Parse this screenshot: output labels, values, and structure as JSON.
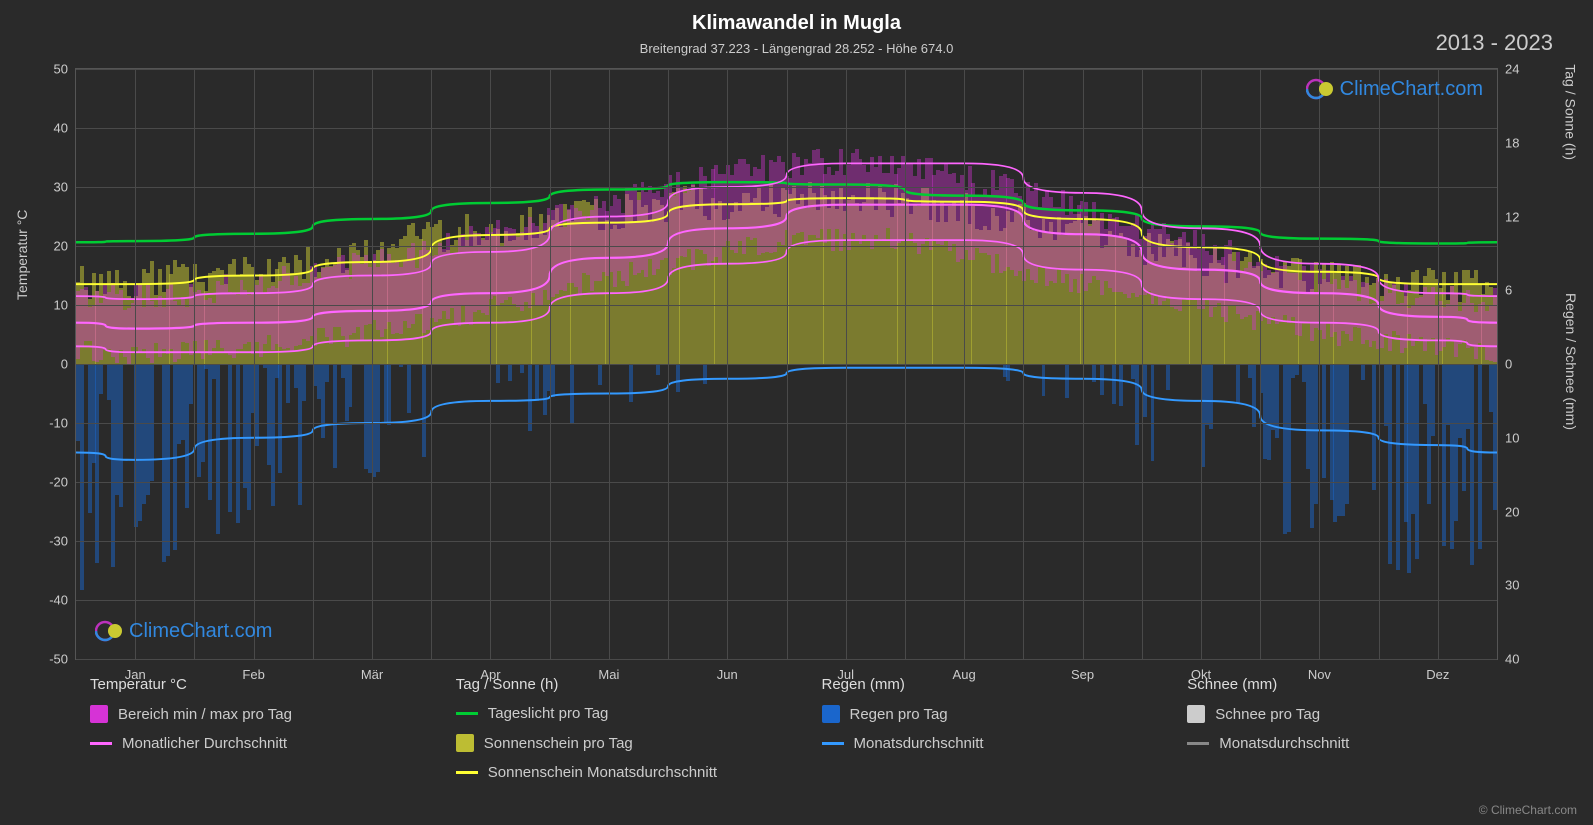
{
  "title": "Klimawandel in Mugla",
  "subtitle": "Breitengrad 37.223 - Längengrad 28.252 - Höhe 674.0",
  "year_range": "2013 - 2023",
  "watermark_text": "ClimeChart.com",
  "copyright": "© ClimeChart.com",
  "colors": {
    "background": "#2a2a2a",
    "grid": "#4a4a4a",
    "text": "#cccccc",
    "title": "#ffffff",
    "temp_range": "#d633d6",
    "temp_avg": "#ff66ff",
    "daylight": "#00cc33",
    "sunshine_fill": "#bdbd33",
    "sunshine_line": "#ffff33",
    "rain_bar": "#1a66cc",
    "rain_line": "#3399ff",
    "snow_bar": "#cccccc",
    "snow_line": "#888888",
    "watermark": "#3399ff"
  },
  "x_axis": {
    "labels": [
      "Jan",
      "Feb",
      "Mär",
      "Apr",
      "Mai",
      "Jun",
      "Jul",
      "Aug",
      "Sep",
      "Okt",
      "Nov",
      "Dez"
    ]
  },
  "y_left": {
    "label": "Temperatur °C",
    "min": -50,
    "max": 50,
    "ticks": [
      -50,
      -40,
      -30,
      -20,
      -10,
      0,
      10,
      20,
      30,
      40,
      50
    ]
  },
  "y_right_top": {
    "label": "Tag / Sonne (h)",
    "min": 0,
    "max": 24,
    "ticks": [
      0,
      6,
      12,
      18,
      24
    ]
  },
  "y_right_bot": {
    "label": "Regen / Schnee (mm)",
    "min": 0,
    "max": 40,
    "ticks": [
      0,
      10,
      20,
      30,
      40
    ]
  },
  "series": {
    "daylight_hours": [
      10.0,
      10.6,
      11.8,
      13.1,
      14.2,
      14.8,
      14.6,
      13.7,
      12.5,
      11.2,
      10.2,
      9.8
    ],
    "sunshine_avg_hours": [
      6.5,
      7.2,
      8.3,
      10.5,
      11.5,
      13.0,
      13.5,
      13.2,
      11.8,
      9.5,
      7.5,
      6.5
    ],
    "temp_avg_c": [
      6,
      7,
      9,
      12,
      18,
      23,
      27,
      27,
      22,
      16,
      12,
      8
    ],
    "temp_min_c": [
      2,
      2,
      4,
      7,
      12,
      17,
      21,
      21,
      16,
      11,
      7,
      4
    ],
    "temp_max_c": [
      11,
      12,
      15,
      19,
      25,
      30,
      34,
      34,
      29,
      23,
      17,
      12
    ],
    "rain_avg_mm": [
      13,
      10,
      8,
      5,
      4,
      2,
      0.5,
      0.5,
      2,
      5,
      9,
      11
    ]
  },
  "legend": {
    "col1": {
      "heading": "Temperatur °C",
      "items": [
        {
          "type": "swatch",
          "color": "#d633d6",
          "label": "Bereich min / max pro Tag"
        },
        {
          "type": "line",
          "color": "#ff66ff",
          "label": "Monatlicher Durchschnitt"
        }
      ]
    },
    "col2": {
      "heading": "Tag / Sonne (h)",
      "items": [
        {
          "type": "line",
          "color": "#00cc33",
          "label": "Tageslicht pro Tag"
        },
        {
          "type": "swatch",
          "color": "#bdbd33",
          "label": "Sonnenschein pro Tag"
        },
        {
          "type": "line",
          "color": "#ffff33",
          "label": "Sonnenschein Monatsdurchschnitt"
        }
      ]
    },
    "col3": {
      "heading": "Regen (mm)",
      "items": [
        {
          "type": "swatch",
          "color": "#1a66cc",
          "label": "Regen pro Tag"
        },
        {
          "type": "line",
          "color": "#3399ff",
          "label": "Monatsdurchschnitt"
        }
      ]
    },
    "col4": {
      "heading": "Schnee (mm)",
      "items": [
        {
          "type": "swatch",
          "color": "#cccccc",
          "label": "Schnee pro Tag"
        },
        {
          "type": "line",
          "color": "#888888",
          "label": "Monatsdurchschnitt"
        }
      ]
    }
  }
}
